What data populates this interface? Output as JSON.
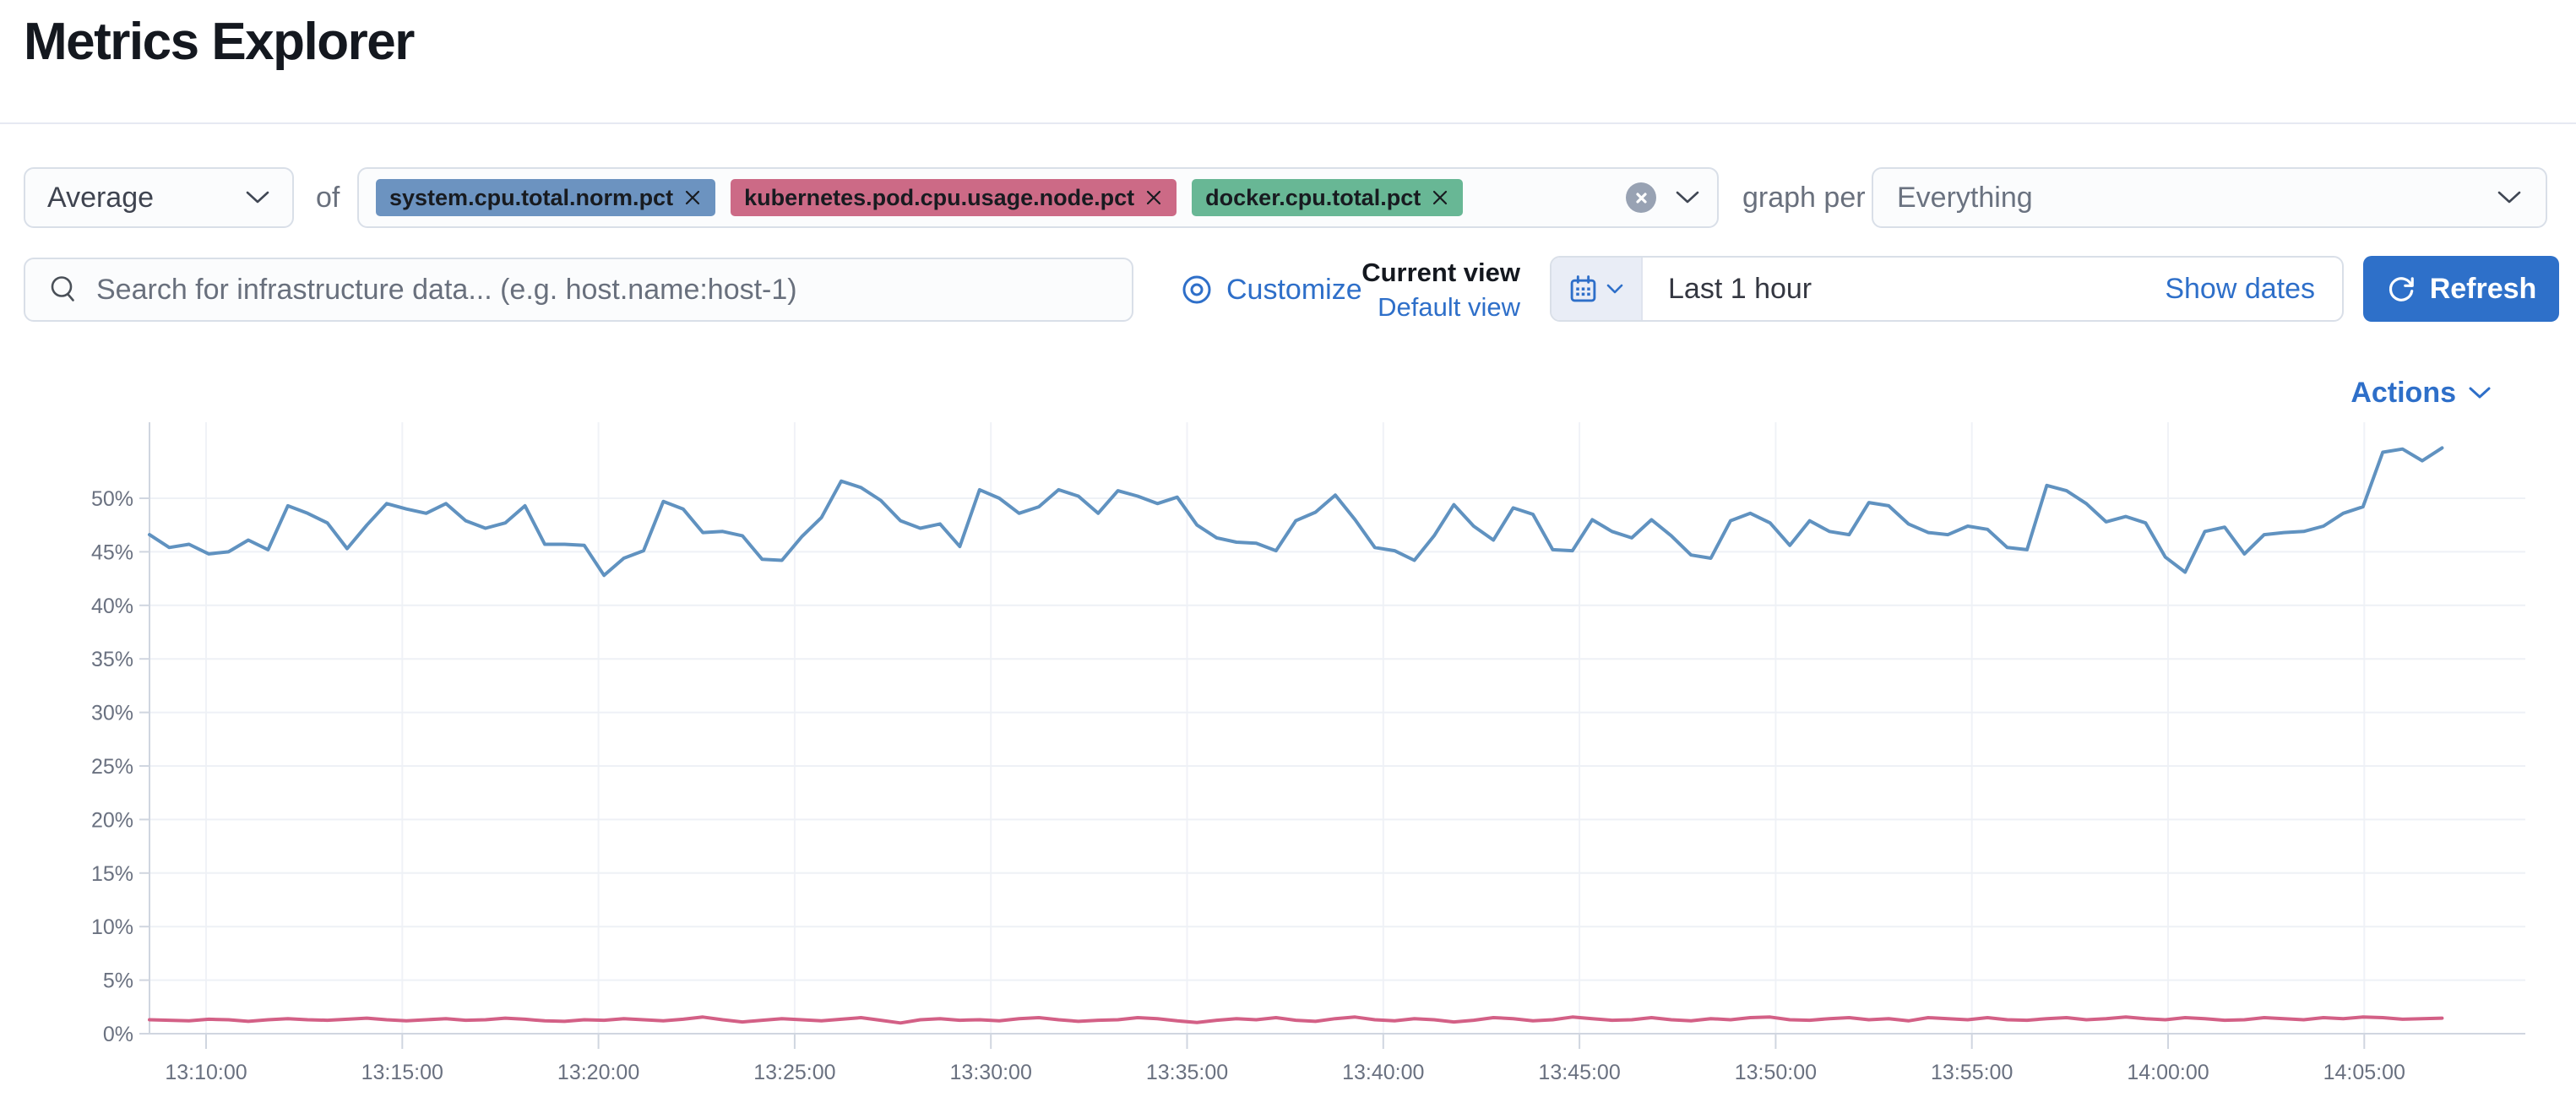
{
  "page": {
    "title": "Metrics Explorer"
  },
  "theme": {
    "link_blue": "#2e6fc9",
    "primary_button_blue": "#2e70c9",
    "control_border": "#d9dfe8",
    "control_background": "#fbfcfd"
  },
  "icons": {
    "search": "magnifier",
    "customize": "eye-target",
    "calendar": "calendar",
    "refresh": "circular-arrow",
    "clear": "cross-in-circle",
    "dropdown": "chevron-down",
    "badge_remove": "cross"
  },
  "toolbar": {
    "aggregation_value": "Average",
    "of_label": "of",
    "metrics": [
      {
        "label": "system.cpu.total.norm.pct",
        "color": "#6c93c0"
      },
      {
        "label": "kubernetes.pod.cpu.usage.node.pct",
        "color": "#cc6a86"
      },
      {
        "label": "docker.cpu.total.pct",
        "color": "#68b795"
      }
    ],
    "graph_per_label": "graph per",
    "group_by_value": "Everything"
  },
  "search": {
    "placeholder": "Search for infrastructure data... (e.g. host.name:host-1)"
  },
  "view_controls": {
    "customize_label": "Customize",
    "current_view_label": "Current view",
    "default_view_label": "Default view"
  },
  "time_controls": {
    "range_label": "Last 1 hour",
    "show_dates_label": "Show dates",
    "refresh_label": "Refresh"
  },
  "chart_header": {
    "actions_label": "Actions"
  },
  "chart_data": {
    "type": "line",
    "title": "",
    "xlabel": "",
    "ylabel": "",
    "unit": "percent",
    "ylim": [
      0,
      57
    ],
    "grid": true,
    "legend_position": "none",
    "start_time": "13:08:30",
    "interval_seconds": 30,
    "y_ticks": [
      "0%",
      "5%",
      "10%",
      "15%",
      "20%",
      "25%",
      "30%",
      "35%",
      "40%",
      "45%",
      "50%"
    ],
    "x_ticks": [
      "13:10:00",
      "13:15:00",
      "13:20:00",
      "13:25:00",
      "13:30:00",
      "13:35:00",
      "13:40:00",
      "13:45:00",
      "13:50:00",
      "13:55:00",
      "14:00:00",
      "14:05:00"
    ],
    "series": [
      {
        "name": "system.cpu.total.norm.pct",
        "color": "#6092C0",
        "values": [
          46.6,
          45.4,
          45.7,
          44.8,
          45.0,
          46.1,
          45.2,
          49.3,
          48.6,
          47.7,
          45.3,
          47.5,
          49.5,
          49.0,
          48.6,
          49.5,
          47.9,
          47.2,
          47.7,
          49.3,
          45.7,
          45.7,
          45.6,
          42.8,
          44.4,
          45.1,
          49.7,
          49.0,
          46.8,
          46.9,
          46.5,
          44.3,
          44.2,
          46.4,
          48.2,
          51.6,
          51.0,
          49.8,
          47.9,
          47.2,
          47.6,
          45.5,
          50.8,
          50.0,
          48.6,
          49.2,
          50.8,
          50.2,
          48.6,
          50.7,
          50.2,
          49.5,
          50.1,
          47.5,
          46.3,
          45.9,
          45.8,
          45.1,
          47.9,
          48.7,
          50.3,
          48.0,
          45.4,
          45.1,
          44.2,
          46.5,
          49.4,
          47.4,
          46.1,
          49.1,
          48.5,
          45.2,
          45.1,
          48.0,
          46.9,
          46.3,
          48.0,
          46.5,
          44.7,
          44.4,
          47.9,
          48.6,
          47.7,
          45.6,
          47.9,
          46.9,
          46.6,
          49.6,
          49.3,
          47.6,
          46.8,
          46.6,
          47.4,
          47.1,
          45.4,
          45.2,
          51.2,
          50.7,
          49.5,
          47.8,
          48.3,
          47.7,
          44.5,
          43.1,
          46.9,
          47.3,
          44.8,
          46.6,
          46.8,
          46.9,
          47.4,
          48.6,
          49.2,
          54.3,
          54.6,
          53.5,
          54.7
        ]
      },
      {
        "name": "kubernetes.pod.cpu.usage.node.pct",
        "color": "#D36086",
        "values": [
          1.3,
          1.25,
          1.2,
          1.35,
          1.3,
          1.15,
          1.3,
          1.4,
          1.3,
          1.25,
          1.35,
          1.45,
          1.3,
          1.2,
          1.3,
          1.4,
          1.25,
          1.3,
          1.45,
          1.35,
          1.2,
          1.15,
          1.3,
          1.25,
          1.4,
          1.3,
          1.2,
          1.35,
          1.55,
          1.3,
          1.1,
          1.25,
          1.4,
          1.3,
          1.2,
          1.35,
          1.5,
          1.25,
          1.0,
          1.3,
          1.4,
          1.25,
          1.3,
          1.2,
          1.4,
          1.5,
          1.3,
          1.15,
          1.25,
          1.3,
          1.5,
          1.4,
          1.2,
          1.05,
          1.25,
          1.4,
          1.3,
          1.5,
          1.25,
          1.15,
          1.4,
          1.55,
          1.3,
          1.2,
          1.4,
          1.3,
          1.1,
          1.25,
          1.5,
          1.4,
          1.2,
          1.3,
          1.55,
          1.4,
          1.25,
          1.3,
          1.5,
          1.3,
          1.2,
          1.4,
          1.3,
          1.5,
          1.55,
          1.3,
          1.25,
          1.4,
          1.5,
          1.3,
          1.4,
          1.2,
          1.5,
          1.4,
          1.3,
          1.5,
          1.3,
          1.25,
          1.4,
          1.5,
          1.3,
          1.4,
          1.55,
          1.4,
          1.3,
          1.5,
          1.4,
          1.25,
          1.3,
          1.5,
          1.4,
          1.3,
          1.5,
          1.4,
          1.55,
          1.5,
          1.35,
          1.4,
          1.45
        ]
      }
    ]
  }
}
